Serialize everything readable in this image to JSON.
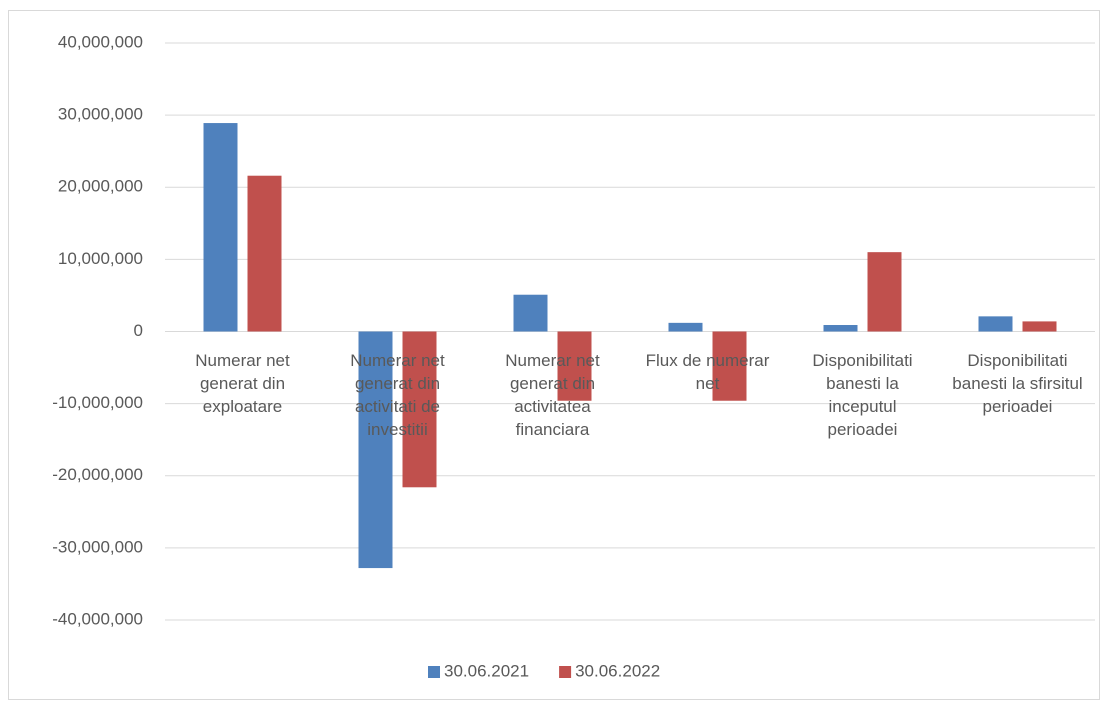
{
  "chart_data": {
    "type": "bar",
    "categories": [
      "Numerar net generat din exploatare",
      "Numerar net generat din activitati de investitii",
      "Numerar net generat din activitatea financiara",
      "Flux de numerar net",
      "Disponibilitati banesti la inceputul perioadei",
      "Disponibilitati banesti la sfirsitul perioadei"
    ],
    "series": [
      {
        "name": "30.06.2021",
        "color": "#4f81bd",
        "values": [
          28900000,
          -32800000,
          5100000,
          1200000,
          900000,
          2100000
        ]
      },
      {
        "name": "30.06.2022",
        "color": "#c0504d",
        "values": [
          21600000,
          -21600000,
          -9600000,
          -9600000,
          11000000,
          1400000
        ]
      }
    ],
    "ylim": [
      -40000000,
      40000000
    ],
    "yticks": [
      {
        "value": -40000000,
        "label": "-40,000,000"
      },
      {
        "value": -30000000,
        "label": "-30,000,000"
      },
      {
        "value": -20000000,
        "label": "-20,000,000"
      },
      {
        "value": -10000000,
        "label": "-10,000,000"
      },
      0,
      {
        "value": 10000000,
        "label": "10,000,000"
      },
      {
        "value": 20000000,
        "label": "20,000,000"
      },
      {
        "value": 30000000,
        "label": "30,000,000"
      },
      {
        "value": 40000000,
        "label": "40,000,000"
      }
    ],
    "grid": true,
    "legend": "bottom"
  }
}
